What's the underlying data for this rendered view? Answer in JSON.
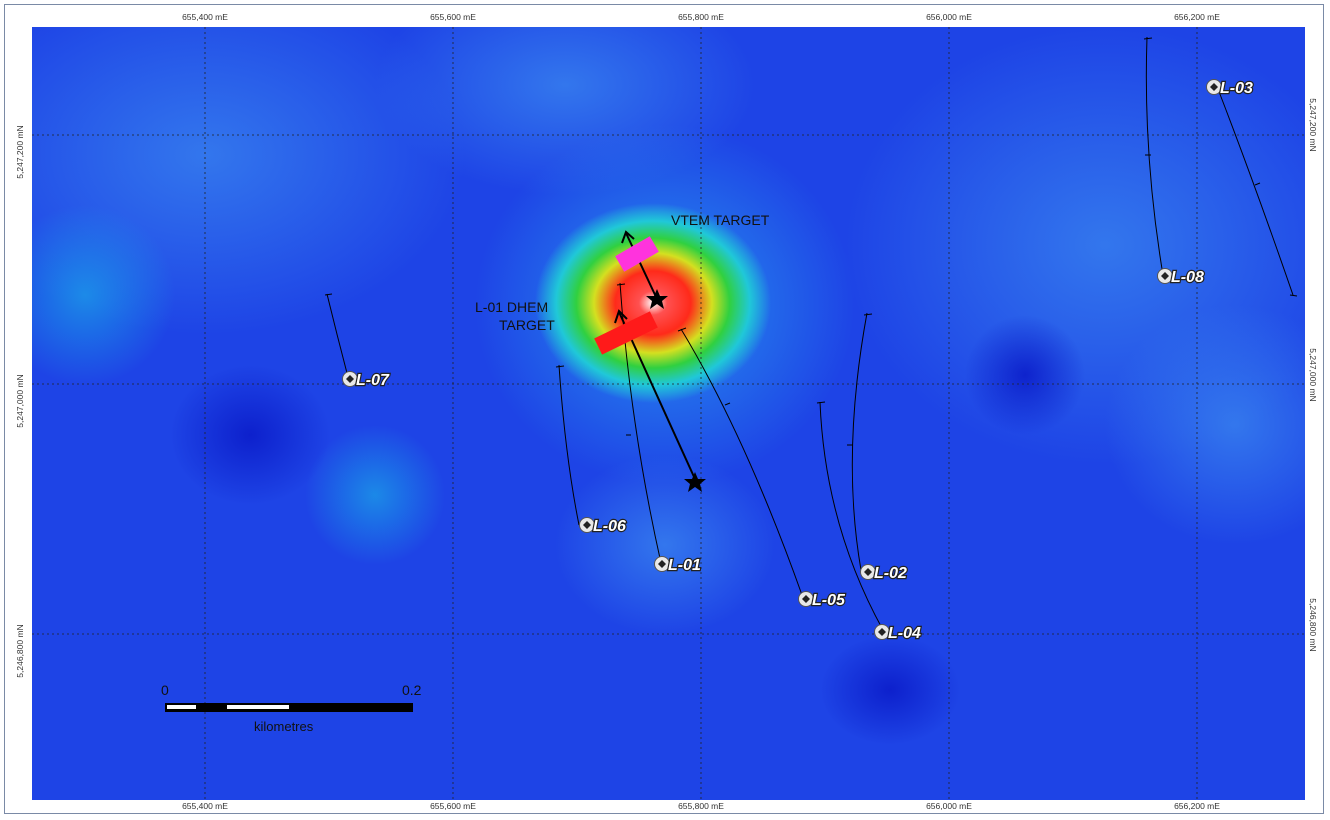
{
  "map": {
    "easting_labels": [
      "655,400 mE",
      "655,600 mE",
      "655,800 mE",
      "656,000 mE",
      "656,200 mE"
    ],
    "northing_labels": [
      "5,247,200 mN",
      "5,247,000 mN",
      "5,246,800 mN"
    ],
    "targets": {
      "vtem": "VTEM TARGET",
      "dhem_line1": "L-01 DHEM",
      "dhem_line2": "TARGET"
    },
    "drillholes": [
      "L-01",
      "L-02",
      "L-03",
      "L-04",
      "L-05",
      "L-06",
      "L-07",
      "L-08"
    ],
    "scale_bar": {
      "start": "0",
      "end": "0.2",
      "unit": "kilometres"
    },
    "colors": {
      "background_low": "#1e3ee6",
      "anomaly_high": "#ff2020",
      "anomaly_peak": "#ffffff",
      "vtem_target": "#ff33dd",
      "dhem_target": "#ff1a1a"
    }
  }
}
